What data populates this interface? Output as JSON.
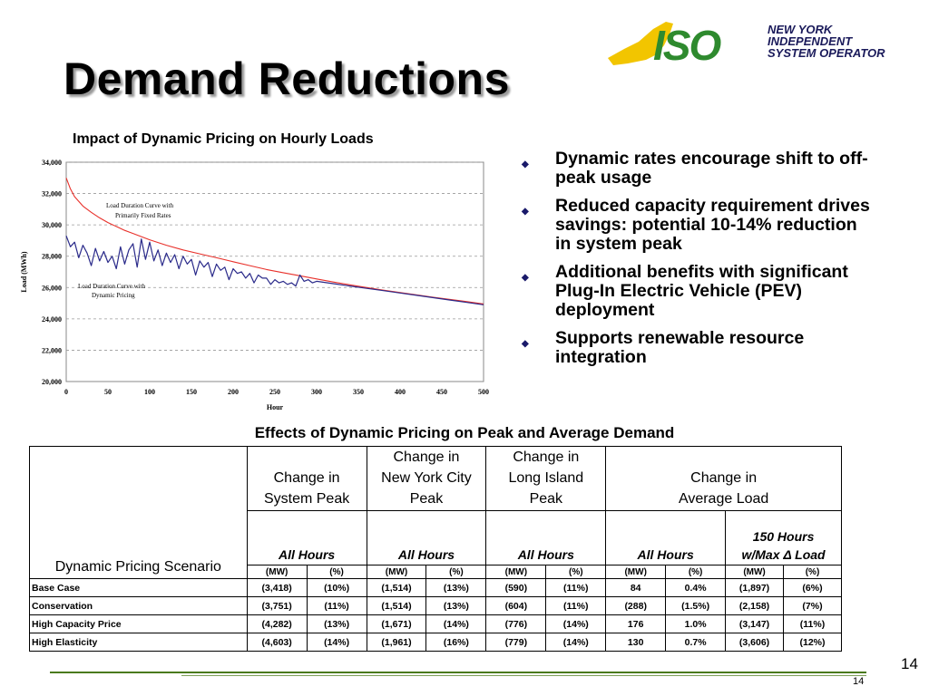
{
  "slide": {
    "title": "Demand Reductions",
    "page_number_large": "14",
    "page_number_small": "14"
  },
  "logo": {
    "mark": "ISO",
    "line1": "NEW YORK",
    "line2": "INDEPENDENT",
    "line3": "SYSTEM OPERATOR"
  },
  "chart_title": "Impact of Dynamic Pricing on Hourly Loads",
  "chart_data": {
    "type": "line",
    "title": "Impact of Dynamic Pricing on Hourly Loads",
    "xlabel": "Hour",
    "ylabel": "Load (MWh)",
    "xlim": [
      0,
      500
    ],
    "ylim": [
      20000,
      34000
    ],
    "x_ticks": [
      "0",
      "50",
      "100",
      "150",
      "200",
      "250",
      "300",
      "350",
      "400",
      "450",
      "500"
    ],
    "y_ticks": [
      "20,000",
      "22,000",
      "24,000",
      "26,000",
      "28,000",
      "30,000",
      "32,000",
      "34,000"
    ],
    "grid": true,
    "annotations": [
      "Load Duration Curve with",
      "Primarily Fixed Rates",
      "Load Duration Curve with",
      "Dynamic Pricing"
    ],
    "series": [
      {
        "color": "#e8302a",
        "x": [
          0,
          5,
          10,
          20,
          30,
          40,
          50,
          60,
          70,
          80,
          90,
          100,
          120,
          140,
          160,
          180,
          200,
          220,
          240,
          260,
          280,
          300,
          320,
          340,
          360,
          380,
          400,
          420,
          440,
          460,
          480,
          500
        ],
        "y": [
          33000,
          32300,
          31800,
          31200,
          30800,
          30450,
          30150,
          29900,
          29650,
          29450,
          29250,
          29050,
          28700,
          28400,
          28150,
          27900,
          27650,
          27400,
          27150,
          26950,
          26750,
          26550,
          26350,
          26170,
          26000,
          25830,
          25680,
          25530,
          25380,
          25240,
          25100,
          24950
        ]
      },
      {
        "color": "#2a2a8a",
        "x": [
          0,
          5,
          10,
          15,
          20,
          25,
          30,
          35,
          40,
          45,
          50,
          55,
          60,
          65,
          70,
          75,
          80,
          85,
          90,
          95,
          100,
          105,
          110,
          115,
          120,
          125,
          130,
          135,
          140,
          145,
          150,
          155,
          160,
          165,
          170,
          175,
          180,
          185,
          190,
          195,
          200,
          205,
          210,
          215,
          220,
          225,
          230,
          235,
          240,
          245,
          250,
          255,
          260,
          265,
          270,
          275,
          280,
          285,
          290,
          295,
          300,
          320,
          340,
          360,
          380,
          400,
          420,
          440,
          460,
          480,
          500
        ],
        "y": [
          29300,
          28600,
          28900,
          27900,
          28700,
          28200,
          27400,
          28500,
          27700,
          28300,
          27600,
          28000,
          27200,
          28600,
          27500,
          28400,
          28800,
          27300,
          29100,
          27800,
          28900,
          27700,
          28400,
          27400,
          28200,
          27600,
          28100,
          27200,
          28000,
          27500,
          27800,
          26800,
          27700,
          27300,
          27600,
          26700,
          27500,
          27100,
          27300,
          26500,
          27200,
          26900,
          27000,
          26600,
          26900,
          26300,
          26800,
          26600,
          26600,
          26200,
          26500,
          26300,
          26400,
          26200,
          26300,
          26100,
          26800,
          26400,
          26500,
          26300,
          26400,
          26250,
          26100,
          25950,
          25800,
          25650,
          25500,
          25350,
          25200,
          25050,
          24900
        ]
      }
    ]
  },
  "bullets": [
    "Dynamic rates encourage shift to off-peak usage",
    "Reduced capacity requirement drives savings: potential 10-14% reduction in system peak",
    "Additional benefits with significant Plug-In Electric Vehicle (PEV) deployment",
    "Supports renewable resource integration"
  ],
  "table": {
    "title": "Effects of Dynamic Pricing on Peak and Average Demand",
    "scenario_header": "Dynamic Pricing Scenario",
    "group_headers": [
      [
        "Change in",
        "System Peak"
      ],
      [
        "Change in",
        "New York City",
        "Peak"
      ],
      [
        "Change in",
        "Long Island",
        "Peak"
      ],
      [
        "Change in",
        "Average Load"
      ]
    ],
    "sub_headers": [
      "All Hours",
      "All Hours",
      "All Hours",
      "All Hours"
    ],
    "sub_header_extra": [
      "150 Hours",
      "w/Max Δ Load"
    ],
    "units": [
      "(MW)",
      "(%)",
      "(MW)",
      "(%)",
      "(MW)",
      "(%)",
      "(MW)",
      "(%)",
      "(MW)",
      "(%)"
    ],
    "rows": [
      {
        "label": "Base Case",
        "values": [
          "(3,418)",
          "(10%)",
          "(1,514)",
          "(13%)",
          "(590)",
          "(11%)",
          "84",
          "0.4%",
          "(1,897)",
          "(6%)"
        ]
      },
      {
        "label": "Conservation",
        "values": [
          "(3,751)",
          "(11%)",
          "(1,514)",
          "(13%)",
          "(604)",
          "(11%)",
          "(288)",
          "(1.5%)",
          "(2,158)",
          "(7%)"
        ]
      },
      {
        "label": "High Capacity Price",
        "values": [
          "(4,282)",
          "(13%)",
          "(1,671)",
          "(14%)",
          "(776)",
          "(14%)",
          "176",
          "1.0%",
          "(3,147)",
          "(11%)"
        ]
      },
      {
        "label": "High Elasticity",
        "values": [
          "(4,603)",
          "(14%)",
          "(1,961)",
          "(16%)",
          "(779)",
          "(14%)",
          "130",
          "0.7%",
          "(3,606)",
          "(12%)"
        ]
      }
    ]
  },
  "colors": {
    "accent_green": "#4a7a1a",
    "logo_yellow": "#f2c500",
    "logo_green": "#2e8a2e",
    "logo_navy": "#1a1a5a"
  }
}
